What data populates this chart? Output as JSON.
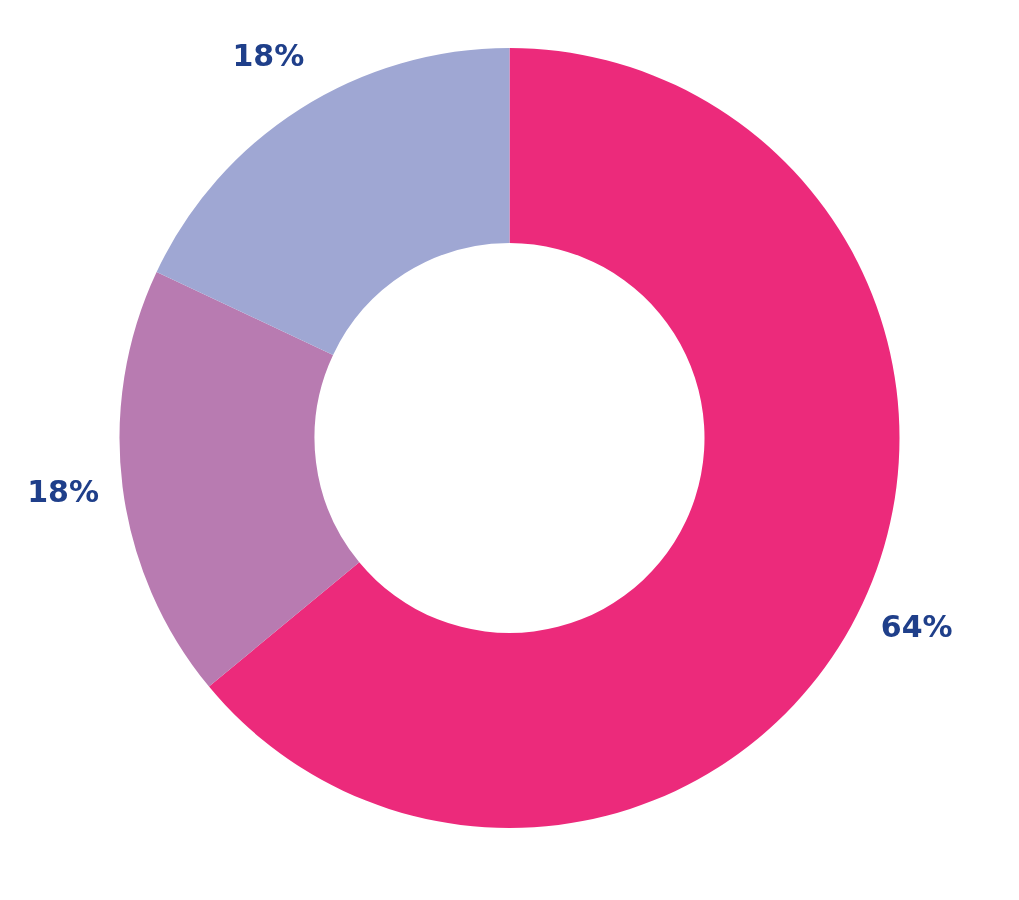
{
  "chart_data": {
    "type": "donut",
    "categories": [
      null,
      null,
      null
    ],
    "values": [
      64,
      18,
      18
    ],
    "colors": [
      "#ec2a7b",
      "#b87bb1",
      "#9fa7d3"
    ],
    "value_labels": [
      "64%",
      "18%",
      "18%"
    ],
    "legend": false
  }
}
